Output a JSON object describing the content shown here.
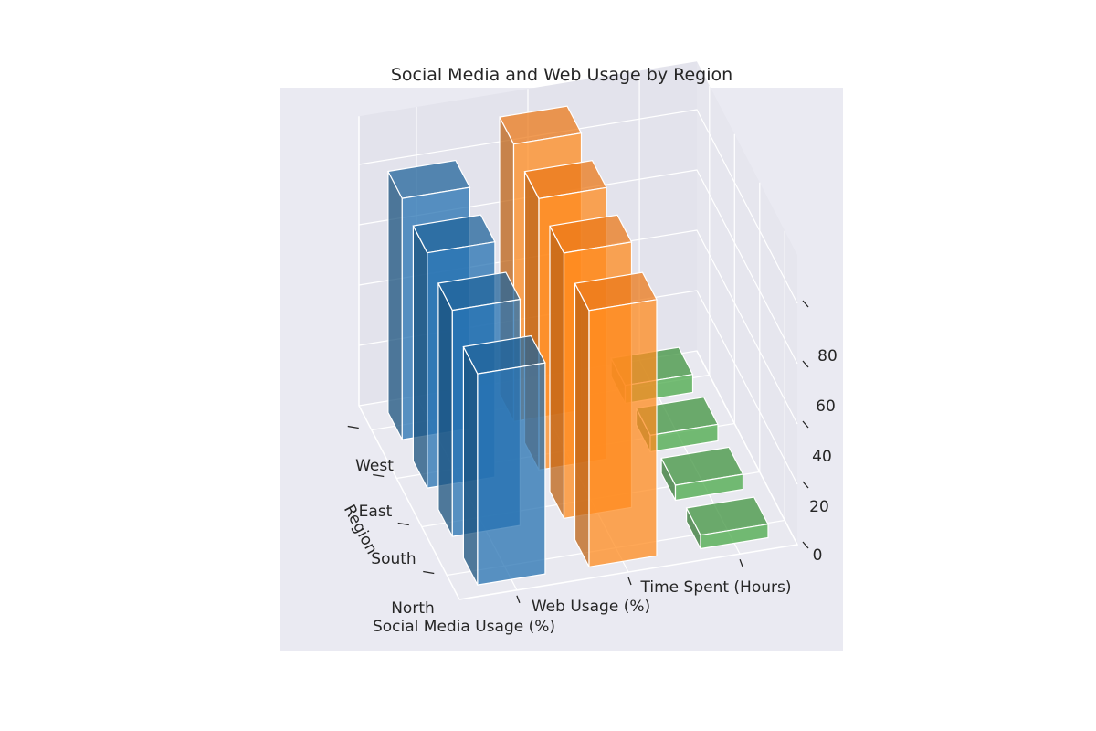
{
  "chart_data": {
    "type": "bar3d",
    "title": "Social Media and Web Usage by Region",
    "xlabel": "",
    "ylabel": "Region",
    "zlabel": "",
    "x_categories": [
      "Social Media Usage (%)",
      "Web Usage (%)",
      "Time Spent (Hours)"
    ],
    "y_categories": [
      "North",
      "South",
      "East",
      "West"
    ],
    "z_ticks": [
      "0",
      "20",
      "40",
      "60",
      "80"
    ],
    "zlim": [
      0,
      90
    ],
    "grid": true,
    "colors": {
      "Social Media Usage (%)": "#1f5f94",
      "Web Usage (%)": "#e0741a",
      "Time Spent (Hours)": "#3c8c3c",
      "pane": "#eaeaf2",
      "grid": "#ffffff"
    },
    "series": [
      {
        "category": "Social Media Usage (%)",
        "values": [
          70,
          75,
          78,
          80
        ]
      },
      {
        "category": "Web Usage (%)",
        "values": [
          85,
          88,
          90,
          92
        ]
      },
      {
        "category": "Time Spent (Hours)",
        "values": [
          4.5,
          5,
          5.5,
          6
        ]
      }
    ]
  }
}
